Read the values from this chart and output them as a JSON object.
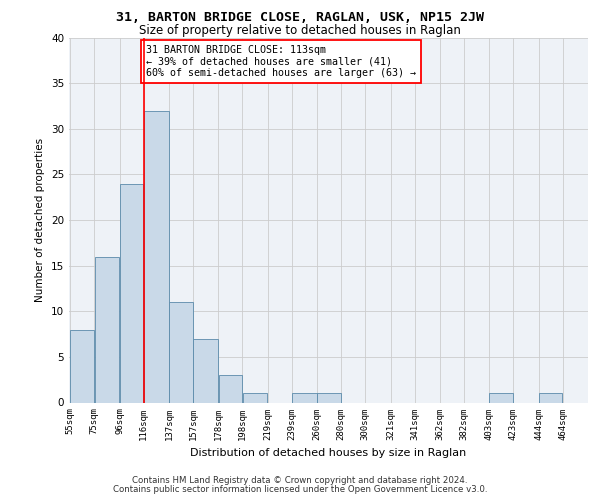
{
  "title1": "31, BARTON BRIDGE CLOSE, RAGLAN, USK, NP15 2JW",
  "title2": "Size of property relative to detached houses in Raglan",
  "xlabel": "Distribution of detached houses by size in Raglan",
  "ylabel": "Number of detached properties",
  "bins": [
    "55sqm",
    "75sqm",
    "96sqm",
    "116sqm",
    "137sqm",
    "157sqm",
    "178sqm",
    "198sqm",
    "219sqm",
    "239sqm",
    "260sqm",
    "280sqm",
    "300sqm",
    "321sqm",
    "341sqm",
    "362sqm",
    "382sqm",
    "403sqm",
    "423sqm",
    "444sqm",
    "464sqm"
  ],
  "bin_edges": [
    55,
    75,
    96,
    116,
    137,
    157,
    178,
    198,
    219,
    239,
    260,
    280,
    300,
    321,
    341,
    362,
    382,
    403,
    423,
    444,
    464,
    484
  ],
  "values": [
    8,
    16,
    24,
    32,
    11,
    7,
    3,
    1,
    0,
    1,
    1,
    0,
    0,
    0,
    0,
    0,
    0,
    1,
    0,
    1,
    0
  ],
  "bar_color": "#c9d9e8",
  "bar_edge_color": "#5a8aaa",
  "grid_color": "#cccccc",
  "vline_x": 116,
  "vline_color": "red",
  "annotation_box_text": "31 BARTON BRIDGE CLOSE: 113sqm\n← 39% of detached houses are smaller (41)\n60% of semi-detached houses are larger (63) →",
  "annotation_box_color": "red",
  "ylim": [
    0,
    40
  ],
  "yticks": [
    0,
    5,
    10,
    15,
    20,
    25,
    30,
    35,
    40
  ],
  "background_color": "#eef2f7",
  "footer1": "Contains HM Land Registry data © Crown copyright and database right 2024.",
  "footer2": "Contains public sector information licensed under the Open Government Licence v3.0."
}
